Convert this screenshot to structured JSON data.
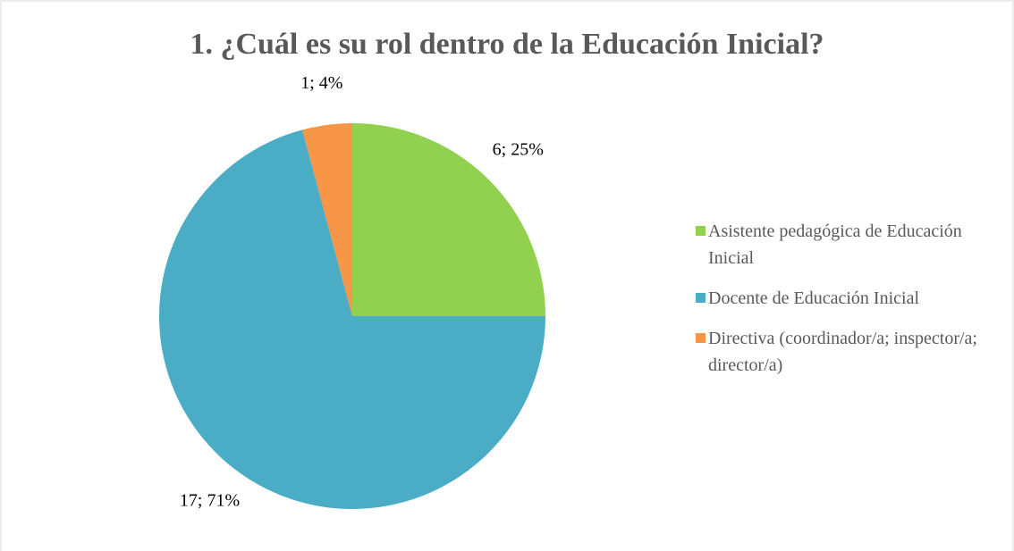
{
  "chart_data": {
    "type": "pie",
    "title": "1. ¿Cuál es su rol dentro de la Educación Inicial?",
    "categories": [
      "Asistente pedagógica de Educación Inicial",
      "Docente de Educación Inicial",
      "Directiva (coordinador/a; inspector/a; director/a)"
    ],
    "values": [
      6,
      17,
      1
    ],
    "value_labels": [
      "6; 25%",
      "17; 71%",
      "1; 4%"
    ],
    "colors": [
      "#92d050",
      "#4bacc6",
      "#f79646"
    ],
    "legend": "right"
  }
}
